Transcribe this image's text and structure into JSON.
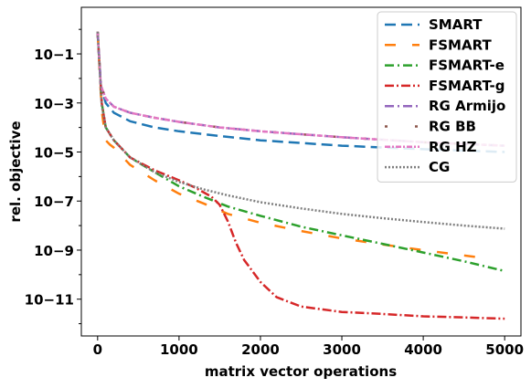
{
  "chart_data": {
    "type": "line",
    "title": "",
    "xlabel": "matrix vector operations",
    "ylabel": "rel. objective",
    "xlim": [
      -200,
      5200
    ],
    "ylim_log10": [
      -12.5,
      0.9
    ],
    "yscale": "log",
    "x_ticks": [
      0,
      1000,
      2000,
      3000,
      4000,
      5000
    ],
    "y_ticks": [
      {
        "exp": -1,
        "label": "10−1"
      },
      {
        "exp": -3,
        "label": "10−3"
      },
      {
        "exp": -5,
        "label": "10−5"
      },
      {
        "exp": -7,
        "label": "10−7"
      },
      {
        "exp": -9,
        "label": "10−9"
      },
      {
        "exp": -11,
        "label": "10−11"
      }
    ],
    "grid": false,
    "legend_position": "top-right",
    "series": [
      {
        "name": "SMART",
        "color": "#1f77b4",
        "dash": "12,6",
        "x": [
          0,
          40,
          100,
          200,
          400,
          700,
          1000,
          1500,
          2000,
          3000,
          4000,
          5000
        ],
        "y": [
          0.8,
          0.005,
          0.001,
          0.0004,
          0.00018,
          0.0001,
          7e-05,
          4.5e-05,
          3e-05,
          1.8e-05,
          1.3e-05,
          1e-05
        ]
      },
      {
        "name": "FSMART",
        "color": "#ff7f0e",
        "dash": "12,18",
        "x": [
          0,
          50,
          100,
          150,
          200,
          400,
          700,
          1000,
          1300,
          1600,
          2000,
          2500,
          3000,
          3500,
          4000,
          4700
        ],
        "y": [
          0.8,
          0.0005,
          3e-05,
          2e-05,
          1.5e-05,
          3e-06,
          7e-07,
          2e-07,
          8e-08,
          3e-08,
          1.3e-08,
          6e-09,
          3e-09,
          1.7e-09,
          1e-09,
          5e-10
        ]
      },
      {
        "name": "FSMART-e",
        "color": "#2ca02c",
        "dash": "10,4,2,4",
        "x": [
          0,
          50,
          100,
          200,
          400,
          700,
          1000,
          1300,
          1600,
          2000,
          2500,
          3000,
          3500,
          4000,
          4500,
          5000
        ],
        "y": [
          0.8,
          0.001,
          0.0001,
          3e-05,
          6e-06,
          1.5e-06,
          4e-07,
          1.5e-07,
          6e-08,
          2.5e-08,
          9e-09,
          4e-09,
          1.8e-09,
          8e-10,
          3.5e-10,
          1.4e-10
        ]
      },
      {
        "name": "FSMART-g",
        "color": "#d62728",
        "dash": "10,3,2,3",
        "x": [
          0,
          50,
          100,
          200,
          400,
          700,
          1000,
          1200,
          1400,
          1500,
          1600,
          1700,
          1800,
          2000,
          2200,
          2500,
          3000,
          3500,
          4000,
          4500,
          5000
        ],
        "y": [
          0.8,
          0.001,
          0.0001,
          3e-05,
          6e-06,
          1.8e-06,
          7e-07,
          3.5e-07,
          1.5e-07,
          7e-08,
          1.5e-08,
          2e-09,
          4e-10,
          5e-11,
          1.2e-11,
          5e-12,
          3e-12,
          2.5e-12,
          2e-12,
          1.8e-12,
          1.6e-12
        ]
      },
      {
        "name": "RG Armijo",
        "color": "#9467bd",
        "dash": "10,4,2,4",
        "x": [
          0,
          40,
          100,
          200,
          400,
          700,
          1000,
          1500,
          2000,
          3000,
          4000,
          5000
        ],
        "y": [
          0.8,
          0.005,
          0.0015,
          0.0007,
          0.0004,
          0.00025,
          0.00017,
          0.0001,
          7e-05,
          4e-05,
          2.5e-05,
          1.8e-05
        ]
      },
      {
        "name": "RG BB",
        "color": "#8c564b",
        "dash": "3,30",
        "x": [
          0,
          40,
          100,
          200,
          400,
          700,
          1000,
          1500,
          2000,
          3000,
          4000,
          5000
        ],
        "y": [
          0.8,
          0.005,
          0.0015,
          0.0007,
          0.0004,
          0.00025,
          0.00017,
          0.0001,
          7e-05,
          4e-05,
          2.5e-05,
          1.8e-05
        ]
      },
      {
        "name": "RG HZ",
        "color": "#e377c2",
        "dash": "6,2,2,2",
        "x": [
          0,
          40,
          100,
          200,
          400,
          700,
          1000,
          1500,
          2000,
          3000,
          4000,
          5000
        ],
        "y": [
          0.8,
          0.005,
          0.0015,
          0.0007,
          0.0004,
          0.00025,
          0.00017,
          0.0001,
          7e-05,
          4e-05,
          2.5e-05,
          1.8e-05
        ]
      },
      {
        "name": "CG",
        "color": "#7f7f7f",
        "dash": "2,2",
        "x": [
          0,
          50,
          100,
          200,
          400,
          700,
          1000,
          1300,
          1600,
          2000,
          2500,
          3000,
          3500,
          4000,
          4500,
          5000
        ],
        "y": [
          0.8,
          0.0008,
          0.0001,
          3e-05,
          6e-06,
          1.5e-06,
          6e-07,
          3e-07,
          1.7e-07,
          9e-08,
          5e-08,
          3e-08,
          2e-08,
          1.4e-08,
          1e-08,
          7.5e-09
        ]
      }
    ]
  }
}
